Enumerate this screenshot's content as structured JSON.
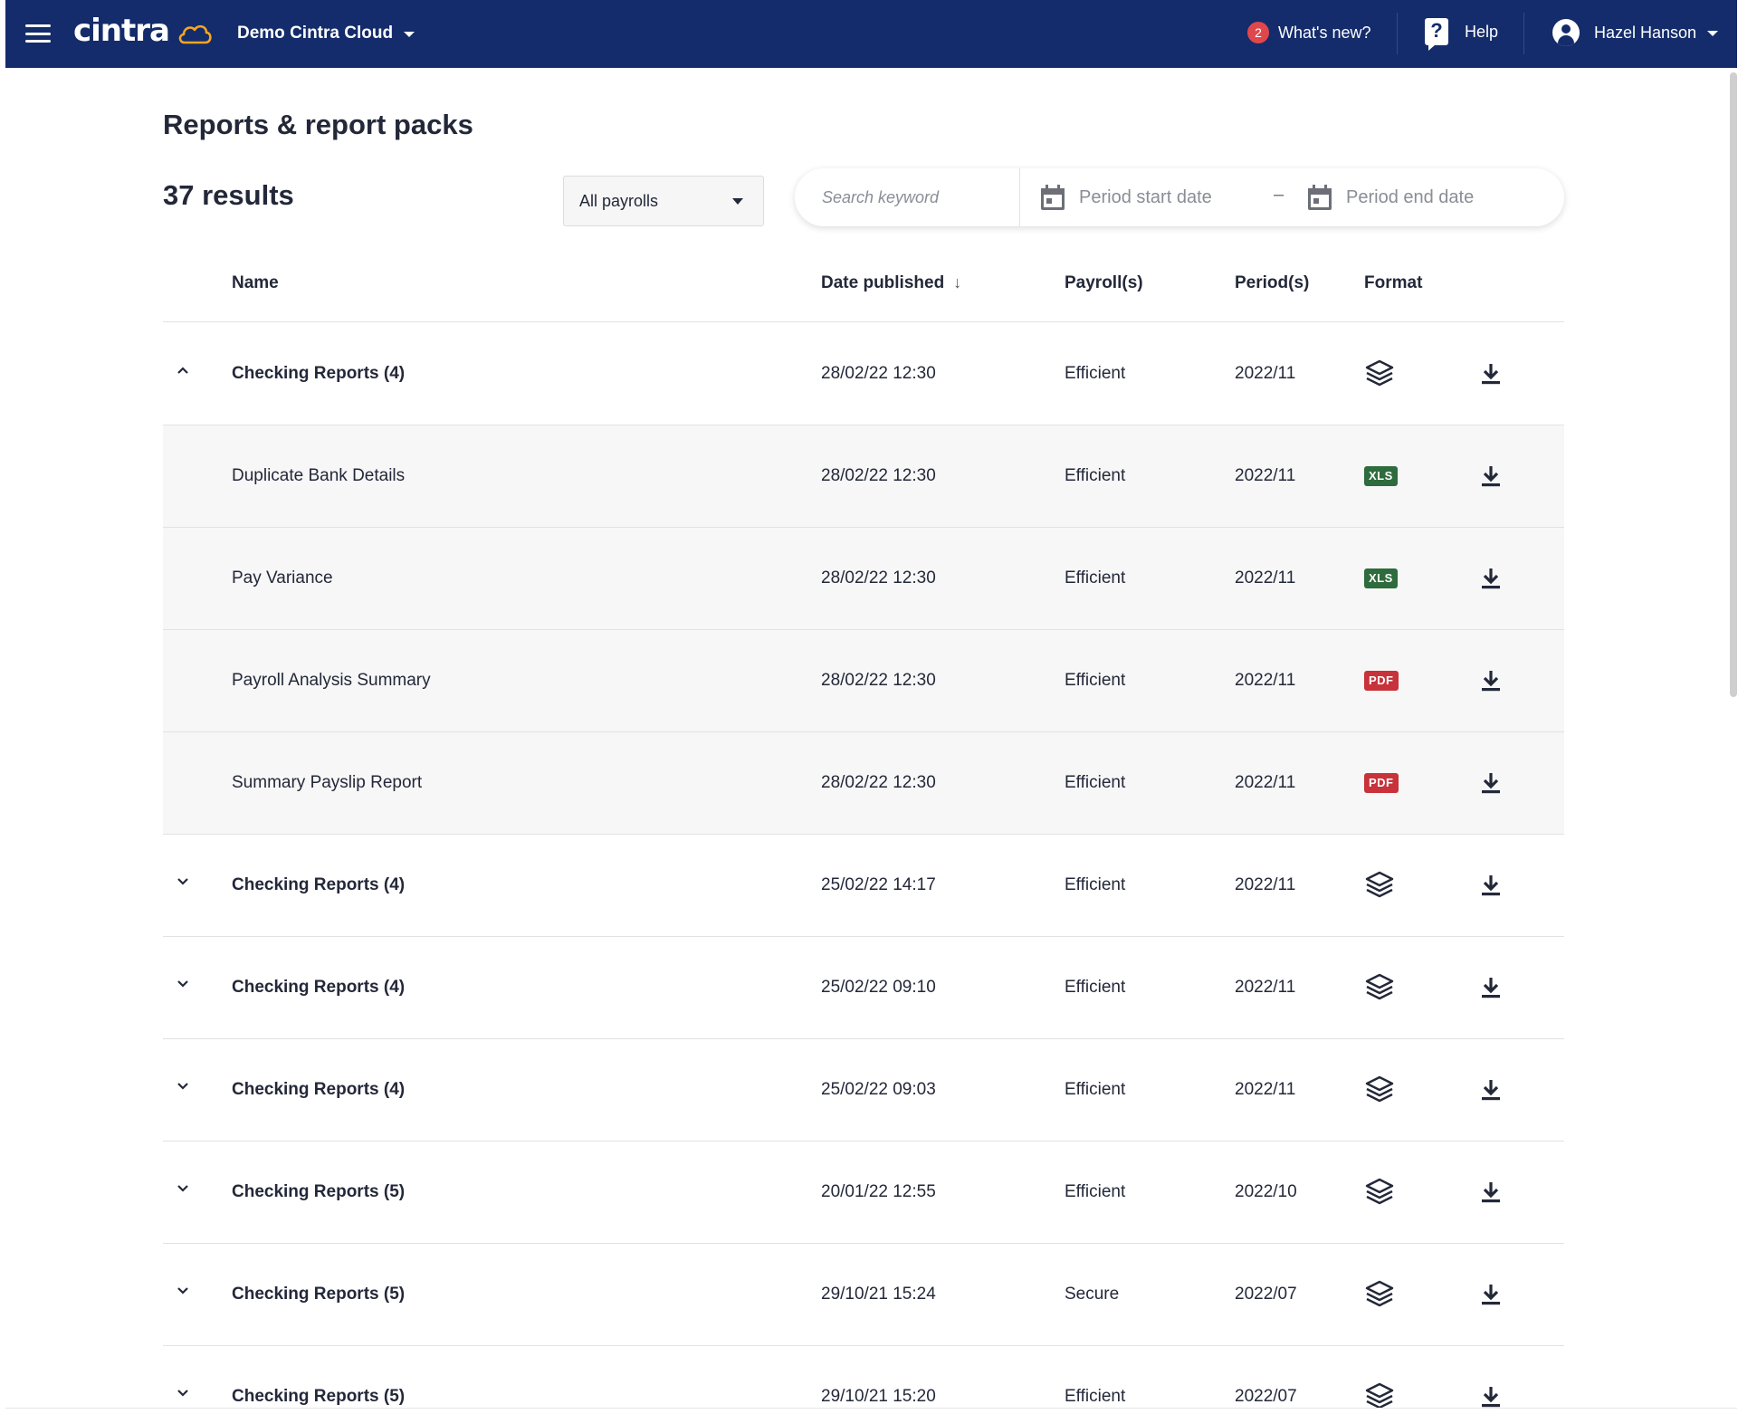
{
  "header": {
    "brand": "cintra",
    "org_name": "Demo Cintra Cloud",
    "whats_new_count": "2",
    "whats_new_label": "What's new?",
    "help_label": "Help",
    "user_name": "Hazel Hanson",
    "colors": {
      "bar": "#142c6b",
      "badge": "#e0474c",
      "cloud": "#f5a623"
    }
  },
  "page": {
    "title": "Reports & report packs",
    "results_count": "37 results"
  },
  "filters": {
    "payroll_select": "All payrolls",
    "search_placeholder": "Search keyword",
    "start_date_placeholder": "Period start date",
    "separator": "–",
    "end_date_placeholder": "Period end date"
  },
  "table": {
    "columns": {
      "name": "Name",
      "date_published": "Date published",
      "payrolls": "Payroll(s)",
      "periods": "Period(s)",
      "format": "Format"
    },
    "sort_indicator": "↓",
    "rows": [
      {
        "kind": "group",
        "expanded": true,
        "name": "Checking Reports (4)",
        "date": "28/02/22 12:30",
        "payroll": "Efficient",
        "period": "2022/11",
        "format": "pack"
      },
      {
        "kind": "child",
        "name": "Duplicate Bank Details",
        "date": "28/02/22 12:30",
        "payroll": "Efficient",
        "period": "2022/11",
        "format": "XLS"
      },
      {
        "kind": "child",
        "name": "Pay Variance",
        "date": "28/02/22 12:30",
        "payroll": "Efficient",
        "period": "2022/11",
        "format": "XLS"
      },
      {
        "kind": "child",
        "name": "Payroll Analysis Summary",
        "date": "28/02/22 12:30",
        "payroll": "Efficient",
        "period": "2022/11",
        "format": "PDF"
      },
      {
        "kind": "child",
        "name": "Summary Payslip Report",
        "date": "28/02/22 12:30",
        "payroll": "Efficient",
        "period": "2022/11",
        "format": "PDF"
      },
      {
        "kind": "group",
        "expanded": false,
        "name": "Checking Reports (4)",
        "date": "25/02/22 14:17",
        "payroll": "Efficient",
        "period": "2022/11",
        "format": "pack"
      },
      {
        "kind": "group",
        "expanded": false,
        "name": "Checking Reports (4)",
        "date": "25/02/22 09:10",
        "payroll": "Efficient",
        "period": "2022/11",
        "format": "pack"
      },
      {
        "kind": "group",
        "expanded": false,
        "name": "Checking Reports (4)",
        "date": "25/02/22 09:03",
        "payroll": "Efficient",
        "period": "2022/11",
        "format": "pack"
      },
      {
        "kind": "group",
        "expanded": false,
        "name": "Checking Reports (5)",
        "date": "20/01/22 12:55",
        "payroll": "Efficient",
        "period": "2022/10",
        "format": "pack"
      },
      {
        "kind": "group",
        "expanded": false,
        "name": "Checking Reports (5)",
        "date": "29/10/21 15:24",
        "payroll": "Secure",
        "period": "2022/07",
        "format": "pack"
      },
      {
        "kind": "group",
        "expanded": false,
        "name": "Checking Reports (5)",
        "date": "29/10/21 15:20",
        "payroll": "Efficient",
        "period": "2022/07",
        "format": "pack"
      }
    ]
  }
}
